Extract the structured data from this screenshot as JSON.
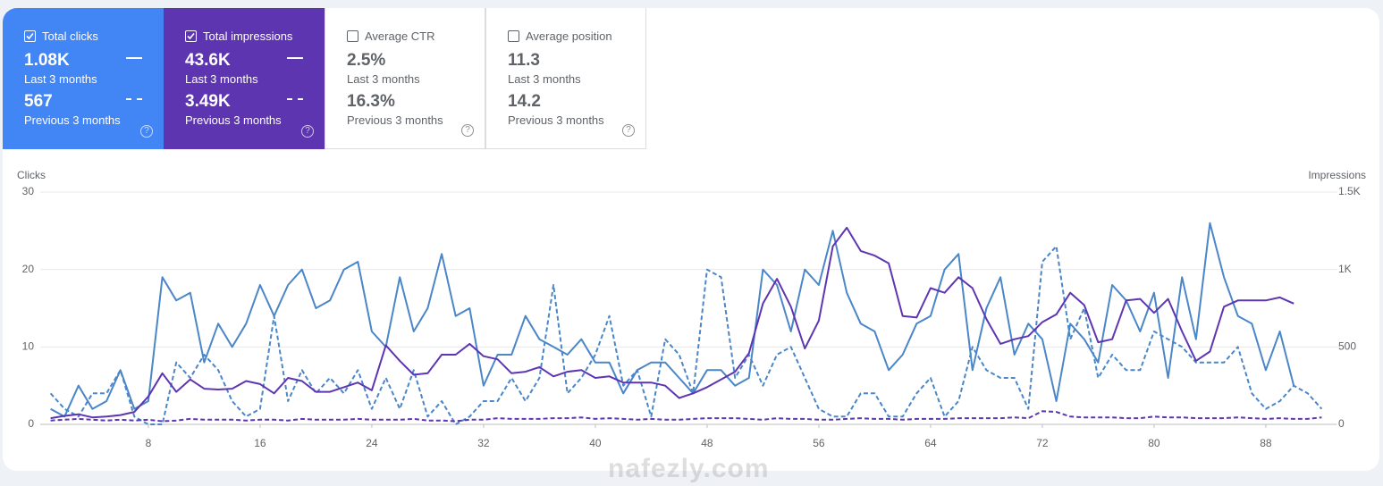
{
  "metrics": [
    {
      "label": "Total clicks",
      "checked": true,
      "color": "#4285f4",
      "value": "1.08K",
      "value_period": "Last 3 months",
      "previous": "567",
      "previous_period": "Previous 3 months"
    },
    {
      "label": "Total impressions",
      "checked": true,
      "color": "#5e35b1",
      "value": "43.6K",
      "value_period": "Last 3 months",
      "previous": "3.49K",
      "previous_period": "Previous 3 months"
    },
    {
      "label": "Average CTR",
      "checked": false,
      "color": "#ffffff",
      "value": "2.5%",
      "value_period": "Last 3 months",
      "previous": "16.3%",
      "previous_period": "Previous 3 months"
    },
    {
      "label": "Average position",
      "checked": false,
      "color": "#ffffff",
      "value": "11.3",
      "value_period": "Last 3 months",
      "previous": "14.2",
      "previous_period": "Previous 3 months"
    }
  ],
  "watermark": "nafezly.com",
  "chart_data": {
    "type": "line",
    "y_label": "Clicks",
    "y2_label": "Impressions",
    "x": [
      1,
      2,
      3,
      4,
      5,
      6,
      7,
      8,
      9,
      10,
      11,
      12,
      13,
      14,
      15,
      16,
      17,
      18,
      19,
      20,
      21,
      22,
      23,
      24,
      25,
      26,
      27,
      28,
      29,
      30,
      31,
      32,
      33,
      34,
      35,
      36,
      37,
      38,
      39,
      40,
      41,
      42,
      43,
      44,
      45,
      46,
      47,
      48,
      49,
      50,
      51,
      52,
      53,
      54,
      55,
      56,
      57,
      58,
      59,
      60,
      61,
      62,
      63,
      64,
      65,
      66,
      67,
      68,
      69,
      70,
      71,
      72,
      73,
      74,
      75,
      76,
      77,
      78,
      79,
      80,
      81,
      82,
      83,
      84,
      85,
      86,
      87,
      88,
      89,
      90,
      91,
      92
    ],
    "xlim": [
      0.26,
      93.06
    ],
    "xticks": [
      8,
      16,
      24,
      32,
      40,
      48,
      56,
      64,
      72,
      80,
      88
    ],
    "ylim": [
      0,
      30
    ],
    "yticks": [
      0,
      10,
      20,
      30
    ],
    "y2lim": [
      0,
      1500
    ],
    "y2ticks": [
      0,
      500,
      {
        "value": 1000,
        "label": "1K"
      },
      {
        "value": 1500,
        "label": "1.5K"
      }
    ],
    "grid": true,
    "series": [
      {
        "color": "#4a86c8",
        "dashed": false,
        "axis": "y",
        "values": [
          2,
          1,
          5,
          2,
          3,
          7,
          2,
          3,
          19,
          16,
          17,
          8,
          13,
          10,
          13,
          18,
          14,
          18,
          20,
          15,
          16,
          20,
          21,
          12,
          10,
          19,
          12,
          15,
          22,
          14,
          15,
          5,
          9,
          9,
          14,
          11,
          10,
          9,
          11,
          8,
          8,
          4,
          7,
          8,
          8,
          6,
          4,
          7,
          7,
          5,
          6,
          20,
          18,
          12,
          20,
          18,
          25,
          17,
          13,
          12,
          7,
          9,
          13,
          14,
          20,
          22,
          7,
          15,
          19,
          9,
          13,
          11,
          3,
          13,
          11,
          8,
          18,
          16,
          12,
          17,
          6,
          19,
          11,
          26,
          19,
          14,
          13,
          7,
          12,
          5,
          null,
          null
        ]
      },
      {
        "color": "#4a86c8",
        "dashed": true,
        "axis": "y",
        "values": [
          4,
          2,
          1,
          4,
          4,
          7,
          1,
          0,
          0,
          8,
          6,
          9,
          7,
          3,
          1,
          2,
          14,
          3,
          7,
          4,
          6,
          4,
          7,
          2,
          6,
          2,
          7,
          1,
          3,
          0,
          1,
          3,
          3,
          6,
          3,
          6,
          18,
          4,
          6,
          9,
          14,
          5,
          7,
          1,
          11,
          9,
          4,
          20,
          19,
          6,
          9,
          5,
          9,
          10,
          6,
          2,
          1,
          1,
          4,
          4,
          1,
          1,
          4,
          6,
          1,
          3,
          10,
          7,
          6,
          6,
          2,
          21,
          23,
          11,
          15,
          6,
          9,
          7,
          7,
          12,
          11,
          10,
          8,
          8,
          8,
          10,
          4,
          2,
          3,
          5,
          4,
          2
        ]
      },
      {
        "color": "#5e35b1",
        "dashed": false,
        "axis": "y2",
        "values": [
          40,
          55,
          65,
          45,
          50,
          60,
          80,
          180,
          330,
          210,
          290,
          230,
          225,
          230,
          280,
          260,
          200,
          300,
          280,
          210,
          210,
          240,
          270,
          220,
          510,
          410,
          320,
          330,
          450,
          450,
          520,
          440,
          420,
          330,
          340,
          370,
          310,
          340,
          350,
          300,
          310,
          270,
          270,
          270,
          250,
          170,
          200,
          240,
          290,
          340,
          460,
          780,
          940,
          760,
          490,
          670,
          1150,
          1270,
          1120,
          1090,
          1040,
          700,
          690,
          880,
          850,
          950,
          880,
          680,
          520,
          550,
          570,
          660,
          710,
          850,
          770,
          530,
          550,
          800,
          810,
          720,
          810,
          600,
          410,
          470,
          760,
          800,
          800,
          800,
          820,
          780,
          null,
          null
        ]
      },
      {
        "color": "#5e35b1",
        "dashed": true,
        "axis": "y2",
        "values": [
          25,
          30,
          35,
          30,
          25,
          30,
          25,
          30,
          20,
          25,
          35,
          30,
          30,
          30,
          25,
          30,
          30,
          25,
          35,
          30,
          30,
          30,
          35,
          30,
          30,
          30,
          35,
          25,
          25,
          20,
          30,
          30,
          40,
          35,
          35,
          35,
          40,
          40,
          45,
          35,
          40,
          35,
          30,
          35,
          30,
          30,
          35,
          40,
          40,
          40,
          35,
          30,
          40,
          35,
          35,
          30,
          30,
          35,
          40,
          35,
          35,
          30,
          35,
          35,
          35,
          40,
          40,
          40,
          40,
          45,
          40,
          85,
          80,
          50,
          45,
          45,
          45,
          40,
          40,
          50,
          45,
          45,
          40,
          40,
          40,
          45,
          40,
          35,
          40,
          35,
          35,
          45
        ]
      }
    ]
  }
}
